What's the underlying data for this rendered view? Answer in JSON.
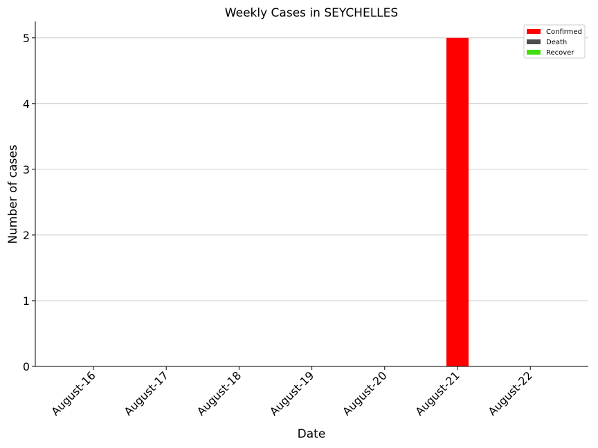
{
  "chart_data": {
    "type": "bar",
    "title": "Weekly Cases in SEYCHELLES",
    "xlabel": "Date",
    "ylabel": "Number of cases",
    "categories": [
      "August-16",
      "August-17",
      "August-18",
      "August-19",
      "August-20",
      "August-21",
      "August-22"
    ],
    "series": [
      {
        "name": "Confirmed",
        "color": "#ff0000",
        "values": [
          0,
          0,
          0,
          0,
          0,
          5,
          0
        ]
      },
      {
        "name": "Death",
        "color": "#4d4d4d",
        "values": [
          0,
          0,
          0,
          0,
          0,
          0,
          0
        ]
      },
      {
        "name": "Recover",
        "color": "#44dd11",
        "values": [
          0,
          0,
          0,
          0,
          0,
          0,
          0
        ]
      }
    ],
    "ylim": [
      0,
      5.25
    ],
    "yticks": [
      0,
      1,
      2,
      3,
      4,
      5
    ],
    "grid": "horizontal",
    "legend": "top-right"
  }
}
